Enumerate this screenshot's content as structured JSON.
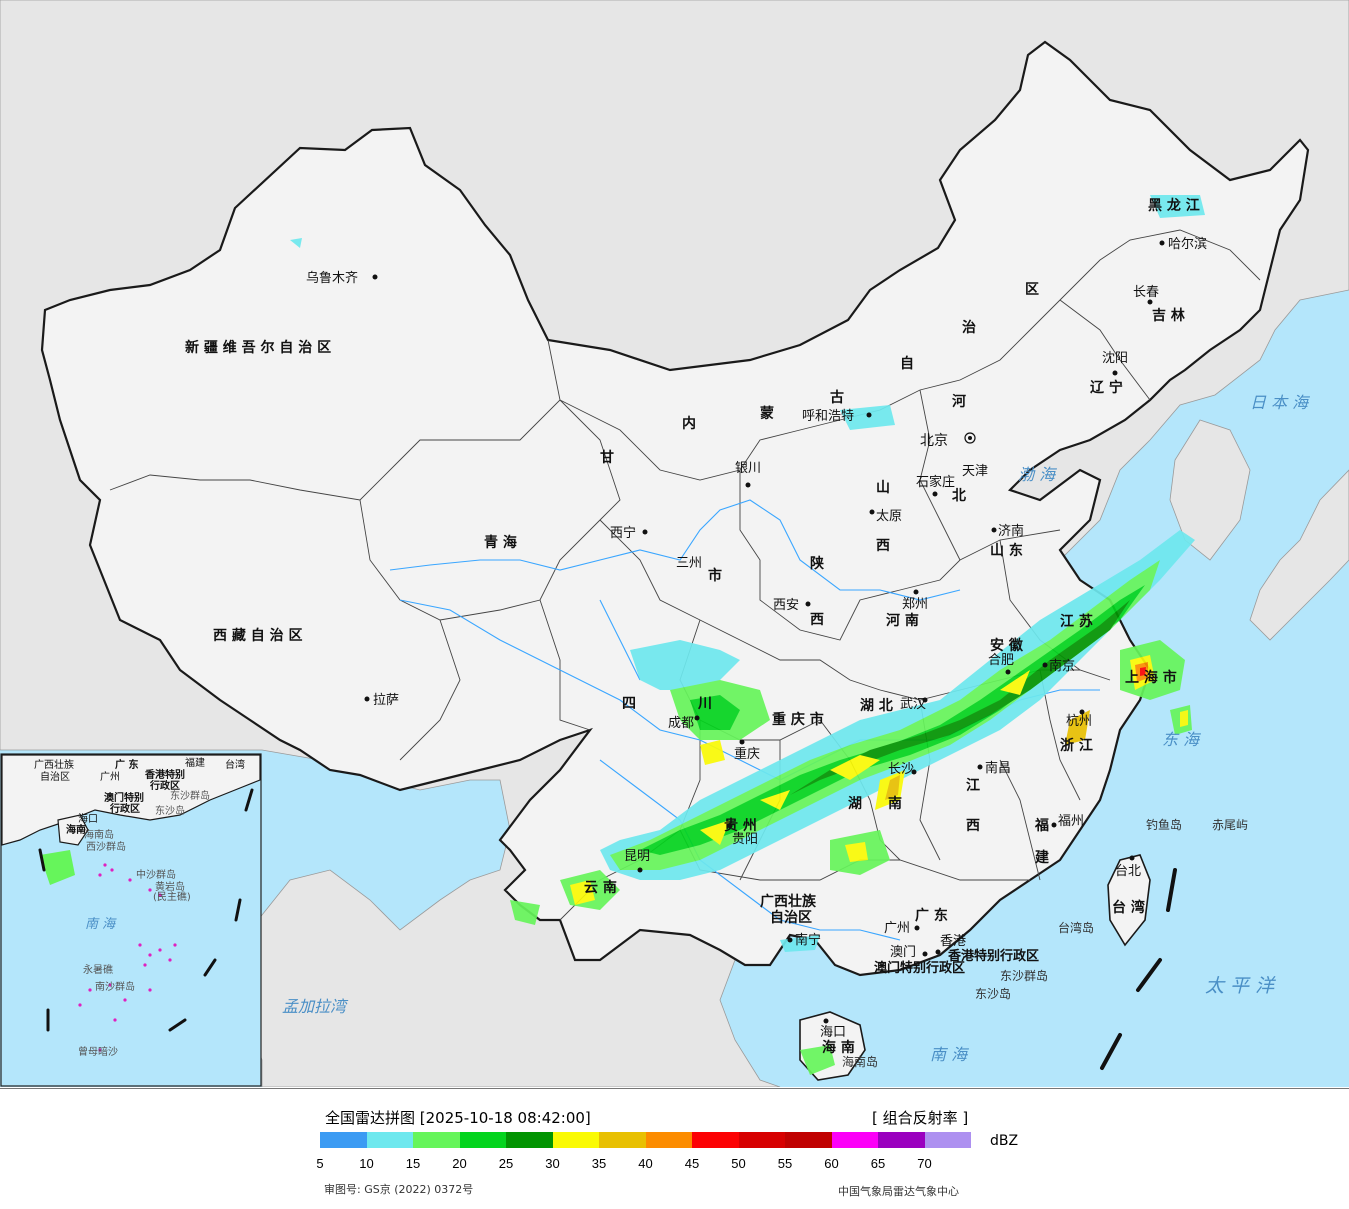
{
  "colors": {
    "sea": "#b4e6fb",
    "land_neighbor": "#e8e8e8",
    "china": "#f4f4f4",
    "border": "#111111",
    "river": "#3aa6ff"
  },
  "provinces": [
    {
      "id": "xinjiang",
      "name": "新 疆 维 吾 尔 自 治 区"
    },
    {
      "id": "xizang",
      "name": "西 藏 自 治 区"
    },
    {
      "id": "qinghai",
      "name": "青 海"
    },
    {
      "id": "gansu",
      "name": "甘"
    },
    {
      "id": "nmg_1",
      "name": "内"
    },
    {
      "id": "nmg_2",
      "name": "蒙"
    },
    {
      "id": "nmg_3",
      "name": "古"
    },
    {
      "id": "nmg_4",
      "name": "自"
    },
    {
      "id": "nmg_5",
      "name": "治"
    },
    {
      "id": "nmg_6",
      "name": "区"
    },
    {
      "id": "heilongjiang",
      "name": "黑 龙 江"
    },
    {
      "id": "jilin",
      "name": "吉 林"
    },
    {
      "id": "liaoning",
      "name": "辽 宁"
    },
    {
      "id": "hebei_1",
      "name": "河"
    },
    {
      "id": "hebei_2",
      "name": "北"
    },
    {
      "id": "shanxi_1",
      "name": "山"
    },
    {
      "id": "shanxi_2",
      "name": "西"
    },
    {
      "id": "shandong",
      "name": "山 东"
    },
    {
      "id": "shaanxi_1",
      "name": "陕"
    },
    {
      "id": "shaanxi_2",
      "name": "西"
    },
    {
      "id": "henan",
      "name": "河 南"
    },
    {
      "id": "sichuan_1",
      "name": "四"
    },
    {
      "id": "sichuan_2",
      "name": "川"
    },
    {
      "id": "chongqing",
      "name": "重 庆 市"
    },
    {
      "id": "hubei",
      "name": "湖 北"
    },
    {
      "id": "anhui",
      "name": "安 徽"
    },
    {
      "id": "jiangsu",
      "name": "江 苏"
    },
    {
      "id": "shanghai",
      "name": "上 海 市"
    },
    {
      "id": "zhejiang",
      "name": "浙 江"
    },
    {
      "id": "jiangxi_1",
      "name": "江"
    },
    {
      "id": "jiangxi_2",
      "name": "西"
    },
    {
      "id": "hunan_1",
      "name": "湖"
    },
    {
      "id": "hunan_2",
      "name": "南"
    },
    {
      "id": "guizhou",
      "name": "贵 州"
    },
    {
      "id": "yunnan",
      "name": "云 南"
    },
    {
      "id": "fujian_1",
      "name": "福"
    },
    {
      "id": "fujian_2",
      "name": "建"
    },
    {
      "id": "guangxi_1",
      "name": "广西壮族"
    },
    {
      "id": "guangxi_2",
      "name": "自治区"
    },
    {
      "id": "guangdong",
      "name": "广 东"
    },
    {
      "id": "hainan",
      "name": "海 南"
    },
    {
      "id": "taiwan",
      "name": "台 湾"
    },
    {
      "id": "hk",
      "name": "香港特别行政区"
    },
    {
      "id": "macao",
      "name": "澳门特别行政区"
    },
    {
      "id": "tianjin",
      "name": "天津"
    },
    {
      "id": "beijing",
      "name": "北京"
    },
    {
      "id": "lanzhou_city",
      "name": "三州"
    },
    {
      "id": "lanzhou_city2",
      "name": "市"
    }
  ],
  "cities": [
    {
      "id": "urumqi",
      "name": "乌鲁木齐"
    },
    {
      "id": "lhasa",
      "name": "拉萨"
    },
    {
      "id": "xining",
      "name": "西宁"
    },
    {
      "id": "yinchuan",
      "name": "银川"
    },
    {
      "id": "hohhot",
      "name": "呼和浩特"
    },
    {
      "id": "harbin",
      "name": "哈尔滨"
    },
    {
      "id": "changchun",
      "name": "长春"
    },
    {
      "id": "shenyang",
      "name": "沈阳"
    },
    {
      "id": "shijiazhuang",
      "name": "石家庄"
    },
    {
      "id": "taiyuan",
      "name": "太原"
    },
    {
      "id": "jinan",
      "name": "济南"
    },
    {
      "id": "zhengzhou",
      "name": "郑州"
    },
    {
      "id": "xian",
      "name": "西安"
    },
    {
      "id": "chengdu",
      "name": "成都"
    },
    {
      "id": "chongqing_c",
      "name": "重庆"
    },
    {
      "id": "wuhan",
      "name": "武汉"
    },
    {
      "id": "hefei",
      "name": "合肥"
    },
    {
      "id": "nanjing",
      "name": "南京"
    },
    {
      "id": "hangzhou",
      "name": "杭州"
    },
    {
      "id": "nanchang",
      "name": "南昌"
    },
    {
      "id": "changsha",
      "name": "长沙"
    },
    {
      "id": "guiyang",
      "name": "贵阳"
    },
    {
      "id": "kunming",
      "name": "昆明"
    },
    {
      "id": "nanning",
      "name": "南宁"
    },
    {
      "id": "guangzhou",
      "name": "广州"
    },
    {
      "id": "hongkong",
      "name": "香港"
    },
    {
      "id": "macau",
      "name": "澳门"
    },
    {
      "id": "fuzhou",
      "name": "福州"
    },
    {
      "id": "taibei",
      "name": "台北"
    },
    {
      "id": "haikou",
      "name": "海口"
    }
  ],
  "islands": [
    {
      "id": "diaoyu",
      "name": "钓鱼岛"
    },
    {
      "id": "chiwei",
      "name": "赤尾屿"
    },
    {
      "id": "taiwan_dao",
      "name": "台湾岛"
    },
    {
      "id": "dongsha_qd",
      "name": "东沙群岛"
    },
    {
      "id": "dongsha_d",
      "name": "东沙岛"
    },
    {
      "id": "hainan_dao",
      "name": "海南岛"
    }
  ],
  "seas": [
    {
      "id": "bohai",
      "name": "渤 海"
    },
    {
      "id": "donghai",
      "name": "东 海"
    },
    {
      "id": "nanhai",
      "name": "南 海"
    },
    {
      "id": "taipingyang",
      "name": "太 平 洋"
    },
    {
      "id": "ribenhai",
      "name": "日 本 海"
    },
    {
      "id": "mengjiala",
      "name": "孟加拉湾"
    }
  ],
  "inset": {
    "labels": [
      {
        "id": "i_gx",
        "name": "广西壮族"
      },
      {
        "id": "i_gx2",
        "name": "自治区"
      },
      {
        "id": "i_gd",
        "name": "广 东"
      },
      {
        "id": "i_fj",
        "name": "福建"
      },
      {
        "id": "i_tw",
        "name": "台湾"
      },
      {
        "id": "i_gz",
        "name": "广州"
      },
      {
        "id": "i_hk",
        "name": "香港特别"
      },
      {
        "id": "i_hk2",
        "name": "行政区"
      },
      {
        "id": "i_mo",
        "name": "澳门特别"
      },
      {
        "id": "i_mo2",
        "name": "行政区"
      },
      {
        "id": "i_dsqd",
        "name": "东沙群岛"
      },
      {
        "id": "i_dsd",
        "name": "东沙岛"
      },
      {
        "id": "i_hk3",
        "name": "海口"
      },
      {
        "id": "i_hn",
        "name": "海南"
      },
      {
        "id": "i_hnd",
        "name": "海南岛"
      },
      {
        "id": "i_xsqd",
        "name": "西沙群岛"
      },
      {
        "id": "i_zsqd",
        "name": "中沙群岛"
      },
      {
        "id": "i_hyd",
        "name": "黄岩岛"
      },
      {
        "id": "i_mbd",
        "name": "(民主礁)"
      },
      {
        "id": "i_nh",
        "name": "南 海"
      },
      {
        "id": "i_yx",
        "name": "永暑礁"
      },
      {
        "id": "i_nsqd",
        "name": "南沙群岛"
      },
      {
        "id": "i_zmas",
        "name": "曾母暗沙"
      }
    ]
  },
  "legend": {
    "title": "全国雷达拼图 [2025-10-18 08:42:00]",
    "product": "[ 组合反射率 ]",
    "unit": "dBZ",
    "ticks": [
      "5",
      "10",
      "15",
      "20",
      "25",
      "30",
      "35",
      "40",
      "45",
      "50",
      "55",
      "60",
      "65",
      "70"
    ],
    "colors": [
      "#3c9bf3",
      "#6ee8ee",
      "#66f55b",
      "#04d41e",
      "#029402",
      "#fafa05",
      "#e8c002",
      "#fc8c00",
      "#fc0204",
      "#d70001",
      "#c00101",
      "#fc00f8",
      "#9a00bf",
      "#ad90f0"
    ],
    "credit_left": "审图号: GS京 (2022) 0372号",
    "credit_right": "中国气象局雷达气象中心"
  }
}
